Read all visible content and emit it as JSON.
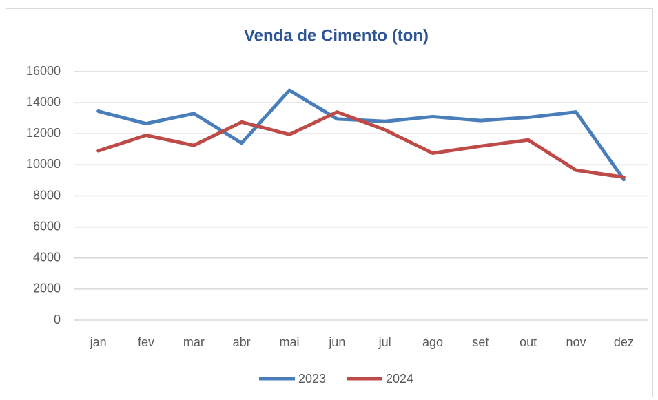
{
  "chart_data": {
    "type": "line",
    "title": "Venda de Cimento (ton)",
    "categories": [
      "jan",
      "fev",
      "mar",
      "abr",
      "mai",
      "jun",
      "jul",
      "ago",
      "set",
      "out",
      "nov",
      "dez"
    ],
    "series": [
      {
        "name": "2023",
        "color": "#4a7ebb",
        "values": [
          13450,
          12650,
          13300,
          11400,
          14800,
          12950,
          12800,
          13100,
          12850,
          13050,
          13400,
          9050
        ]
      },
      {
        "name": "2024",
        "color": "#be4b48",
        "values": [
          10900,
          11900,
          11250,
          12750,
          11950,
          13400,
          12250,
          10750,
          11200,
          11600,
          9650,
          9200
        ]
      }
    ],
    "ylim": [
      0,
      16000
    ],
    "yticks": [
      0,
      2000,
      4000,
      6000,
      8000,
      10000,
      12000,
      14000,
      16000
    ],
    "grid": true,
    "legend": "bottom"
  }
}
